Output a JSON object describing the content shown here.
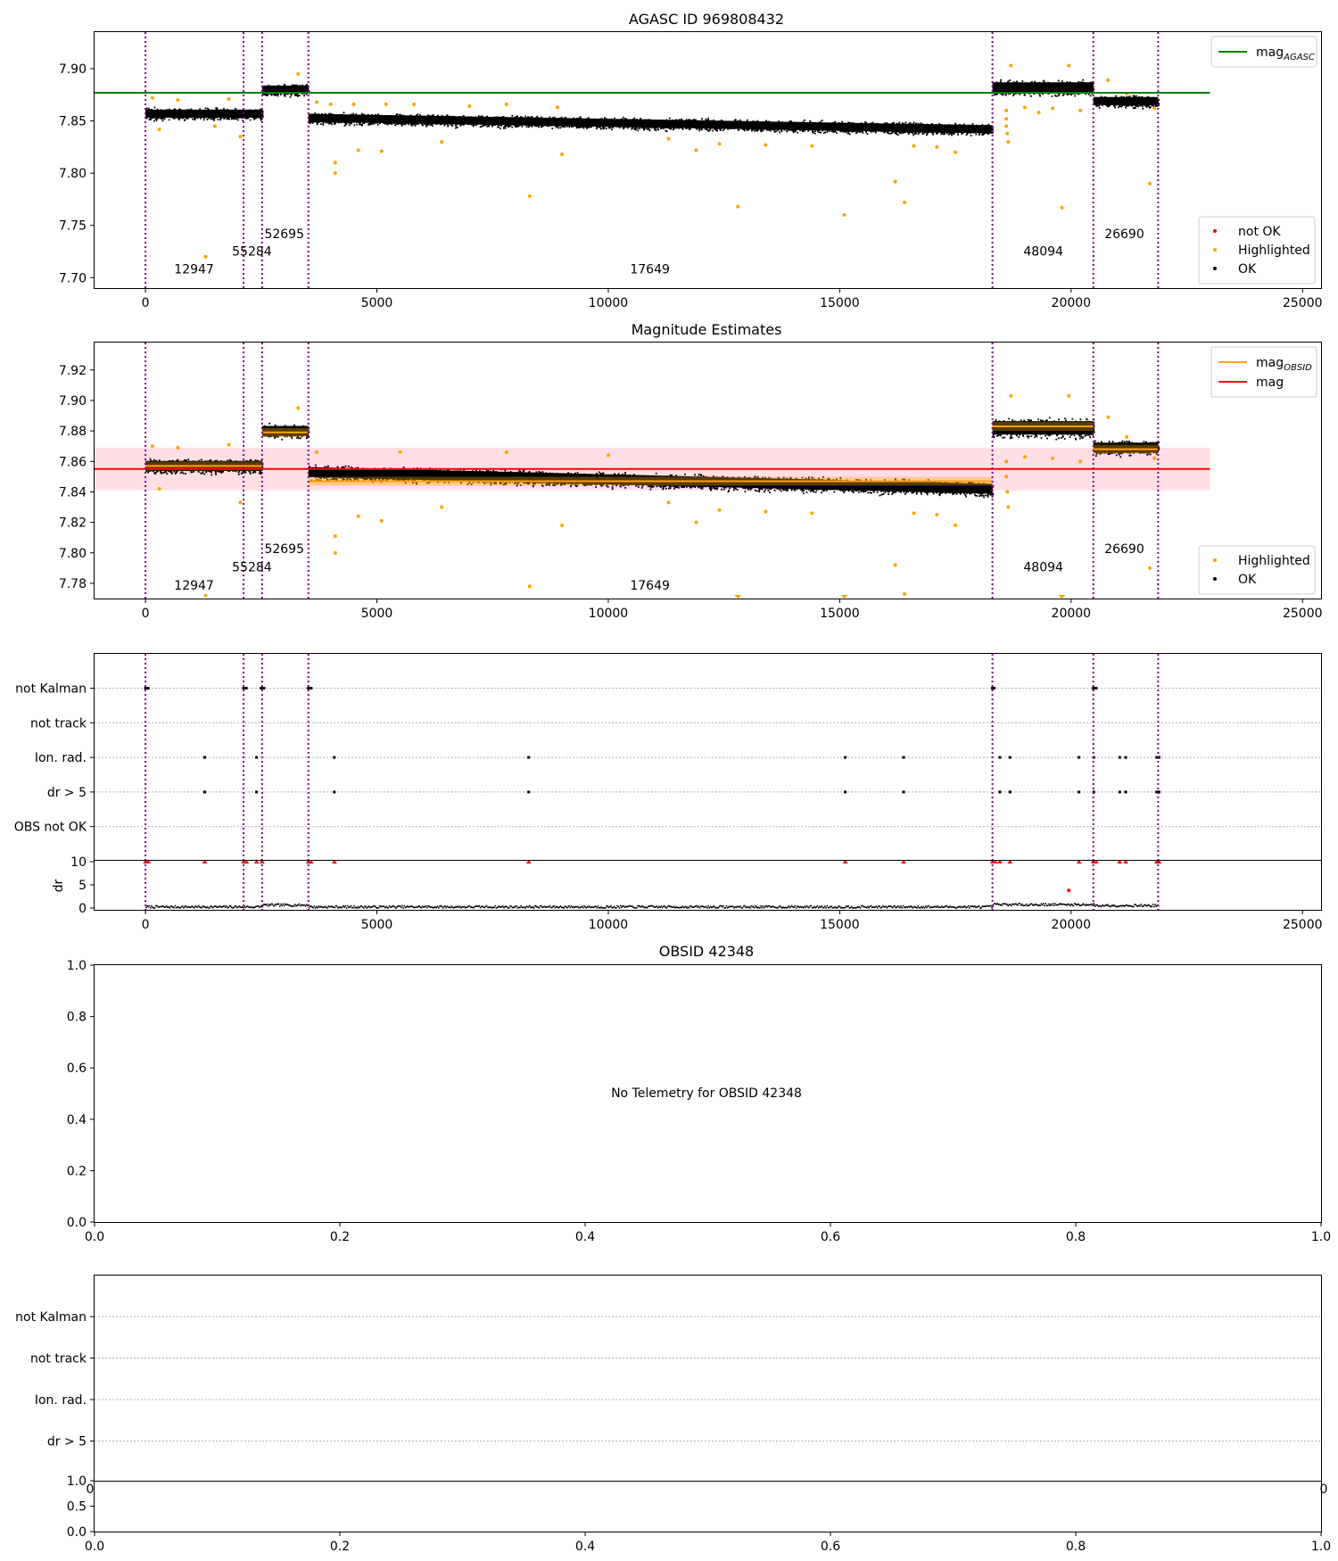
{
  "chart_data": [
    {
      "type": "scatter",
      "title": "AGASC ID 969808432",
      "xlim": [
        -1100,
        25400
      ],
      "ylim": [
        7.69,
        7.935
      ],
      "xticks": [
        0,
        5000,
        10000,
        15000,
        20000,
        25000
      ],
      "yticks": [
        7.7,
        7.75,
        7.8,
        7.85,
        7.9
      ],
      "ytick_decimals": 2,
      "vlines": [
        0,
        2120,
        2520,
        3520,
        18300,
        20480,
        21880
      ],
      "obs_labels": [
        {
          "text": "12947",
          "x": 1050,
          "y": 7.704
        },
        {
          "text": "55284",
          "x": 2300,
          "y": 7.721
        },
        {
          "text": "52695",
          "x": 3000,
          "y": 7.738
        },
        {
          "text": "17649",
          "x": 10900,
          "y": 7.704
        },
        {
          "text": "48094",
          "x": 19400,
          "y": 7.721
        },
        {
          "text": "26690",
          "x": 21150,
          "y": 7.738
        }
      ],
      "segments": [
        {
          "x0": 0,
          "x1": 2520,
          "y0": 7.857,
          "y1": 7.857,
          "spread": 0.007
        },
        {
          "x0": 2520,
          "x1": 3520,
          "y0": 7.88,
          "y1": 7.88,
          "spread": 0.007
        },
        {
          "x0": 3520,
          "x1": 18300,
          "y0": 7.853,
          "y1": 7.842,
          "spread": 0.007
        },
        {
          "x0": 18300,
          "x1": 20480,
          "y0": 7.882,
          "y1": 7.882,
          "spread": 0.009
        },
        {
          "x0": 20480,
          "x1": 21880,
          "y0": 7.869,
          "y1": 7.869,
          "spread": 0.007
        }
      ],
      "highlighted": [
        [
          150,
          7.872
        ],
        [
          300,
          7.842
        ],
        [
          700,
          7.87
        ],
        [
          1300,
          7.72
        ],
        [
          1500,
          7.845
        ],
        [
          1800,
          7.871
        ],
        [
          2050,
          7.835
        ],
        [
          3300,
          7.895
        ],
        [
          3700,
          7.868
        ],
        [
          4000,
          7.866
        ],
        [
          4100,
          7.8
        ],
        [
          4100,
          7.81
        ],
        [
          4500,
          7.866
        ],
        [
          4600,
          7.822
        ],
        [
          5100,
          7.821
        ],
        [
          5200,
          7.866
        ],
        [
          5800,
          7.866
        ],
        [
          6400,
          7.83
        ],
        [
          7000,
          7.864
        ],
        [
          7800,
          7.866
        ],
        [
          8300,
          7.778
        ],
        [
          8900,
          7.863
        ],
        [
          9000,
          7.818
        ],
        [
          11300,
          7.833
        ],
        [
          11900,
          7.822
        ],
        [
          12400,
          7.828
        ],
        [
          12800,
          7.768
        ],
        [
          13400,
          7.827
        ],
        [
          14400,
          7.826
        ],
        [
          15100,
          7.76
        ],
        [
          16200,
          7.792
        ],
        [
          16400,
          7.772
        ],
        [
          16600,
          7.826
        ],
        [
          17100,
          7.825
        ],
        [
          17500,
          7.82
        ],
        [
          18600,
          7.86
        ],
        [
          18600,
          7.852
        ],
        [
          18600,
          7.845
        ],
        [
          18620,
          7.838
        ],
        [
          18640,
          7.83
        ],
        [
          18700,
          7.903
        ],
        [
          19000,
          7.863
        ],
        [
          19300,
          7.858
        ],
        [
          19600,
          7.862
        ],
        [
          19800,
          7.767
        ],
        [
          19950,
          7.903
        ],
        [
          20200,
          7.86
        ],
        [
          20800,
          7.889
        ],
        [
          21200,
          7.876
        ],
        [
          21700,
          7.79
        ],
        [
          21800,
          7.862
        ]
      ],
      "hlines": [
        {
          "y": 7.877,
          "x0": -1100,
          "x1": 23000,
          "color": "#008000",
          "name": "mag_AGASC"
        }
      ],
      "band": null,
      "legend_top": [
        {
          "label": "mag",
          "sub": "AGASC",
          "color": "#008000"
        }
      ],
      "legend_bottom": [
        {
          "label": "not OK",
          "color": "#ff0000"
        },
        {
          "label": "Highlighted",
          "color": "#ffa500"
        },
        {
          "label": "OK",
          "color": "#000000"
        }
      ]
    },
    {
      "type": "scatter",
      "title": "Magnitude Estimates",
      "xlim": [
        -1100,
        25400
      ],
      "ylim": [
        7.77,
        7.938
      ],
      "xticks": [
        0,
        5000,
        10000,
        15000,
        20000,
        25000
      ],
      "yticks": [
        7.78,
        7.8,
        7.82,
        7.84,
        7.86,
        7.88,
        7.9,
        7.92
      ],
      "ytick_decimals": 2,
      "vlines": [
        0,
        2120,
        2520,
        3520,
        18300,
        20480,
        21880
      ],
      "obs_labels": [
        {
          "text": "12947",
          "x": 1050,
          "y": 7.776
        },
        {
          "text": "55284",
          "x": 2300,
          "y": 7.788
        },
        {
          "text": "52695",
          "x": 3000,
          "y": 7.8
        },
        {
          "text": "17649",
          "x": 10900,
          "y": 7.776
        },
        {
          "text": "48094",
          "x": 19400,
          "y": 7.788
        },
        {
          "text": "26690",
          "x": 21150,
          "y": 7.8
        }
      ],
      "segments": [
        {
          "x0": 0,
          "x1": 2520,
          "y0": 7.857,
          "y1": 7.857,
          "spread": 0.006,
          "mean": 7.857
        },
        {
          "x0": 2520,
          "x1": 3520,
          "y0": 7.88,
          "y1": 7.88,
          "spread": 0.006,
          "mean": 7.879
        },
        {
          "x0": 3520,
          "x1": 18300,
          "y0": 7.853,
          "y1": 7.842,
          "spread": 0.006,
          "mean": 7.847
        },
        {
          "x0": 18300,
          "x1": 20480,
          "y0": 7.882,
          "y1": 7.882,
          "spread": 0.008,
          "mean": 7.883
        },
        {
          "x0": 20480,
          "x1": 21880,
          "y0": 7.869,
          "y1": 7.869,
          "spread": 0.006,
          "mean": 7.868
        }
      ],
      "highlighted": [
        [
          150,
          7.87
        ],
        [
          300,
          7.842
        ],
        [
          700,
          7.869
        ],
        [
          1300,
          7.772
        ],
        [
          1800,
          7.871
        ],
        [
          2050,
          7.833
        ],
        [
          3300,
          7.895
        ],
        [
          3700,
          7.866
        ],
        [
          4100,
          7.8
        ],
        [
          4100,
          7.811
        ],
        [
          4600,
          7.824
        ],
        [
          5100,
          7.821
        ],
        [
          5500,
          7.866
        ],
        [
          6400,
          7.83
        ],
        [
          7800,
          7.866
        ],
        [
          8300,
          7.778
        ],
        [
          9000,
          7.818
        ],
        [
          10000,
          7.864
        ],
        [
          11300,
          7.833
        ],
        [
          11900,
          7.82
        ],
        [
          12400,
          7.828
        ],
        [
          12800,
          7.771
        ],
        [
          13400,
          7.827
        ],
        [
          14400,
          7.826
        ],
        [
          15100,
          7.771
        ],
        [
          16200,
          7.792
        ],
        [
          16400,
          7.773
        ],
        [
          16600,
          7.826
        ],
        [
          17100,
          7.825
        ],
        [
          17500,
          7.818
        ],
        [
          18600,
          7.86
        ],
        [
          18600,
          7.85
        ],
        [
          18620,
          7.84
        ],
        [
          18640,
          7.83
        ],
        [
          18700,
          7.903
        ],
        [
          19000,
          7.863
        ],
        [
          19600,
          7.862
        ],
        [
          19800,
          7.771
        ],
        [
          19950,
          7.903
        ],
        [
          20200,
          7.86
        ],
        [
          20800,
          7.889
        ],
        [
          21200,
          7.876
        ],
        [
          21700,
          7.79
        ],
        [
          21800,
          7.862
        ]
      ],
      "hlines": [
        {
          "y": 7.855,
          "x0": -1100,
          "x1": 23000,
          "color": "#ff0000",
          "name": "mag"
        }
      ],
      "band": {
        "y0": 7.841,
        "y1": 7.869,
        "x0": -1100,
        "x1": 23000,
        "color": "#ffc0cb"
      },
      "legend_top": [
        {
          "label": "mag",
          "sub": "OBSID",
          "color": "#ffa500"
        },
        {
          "label": "mag",
          "sub": "",
          "color": "#ff0000"
        }
      ],
      "legend_bottom": [
        {
          "label": "Highlighted",
          "color": "#ffa500"
        },
        {
          "label": "OK",
          "color": "#000000"
        }
      ]
    },
    {
      "type": "scatter",
      "title": "",
      "xlim": [
        -1100,
        25400
      ],
      "categories": [
        "not Kalman",
        "not track",
        "Ion. rad.",
        "dr > 5",
        "OBS not OK"
      ],
      "vlines": [
        0,
        2120,
        2520,
        3520,
        18300,
        20480,
        21880
      ],
      "flag_points": {
        "not Kalman": [
          0,
          60,
          2120,
          2180,
          2500,
          2560,
          3520,
          3580,
          18300,
          18340,
          20480,
          20540
        ],
        "Ion. rad.": [
          1280,
          2400,
          4080,
          8280,
          15120,
          16380,
          18460,
          18680,
          20170,
          20490,
          21050,
          21180,
          21850,
          21900
        ],
        "dr > 5": [
          1280,
          2400,
          4080,
          8280,
          15120,
          16380,
          18460,
          18680,
          20170,
          20490,
          21050,
          21180,
          21850,
          21900
        ]
      },
      "dr_ylabel": "dr",
      "dr_yticks": [
        0,
        5,
        10
      ],
      "dr_xticks": [
        0,
        5000,
        10000,
        15000,
        20000,
        25000
      ],
      "dr_clipped": [
        0,
        60,
        1280,
        2120,
        2180,
        2400,
        2520,
        3520,
        3580,
        4080,
        8280,
        15120,
        16380,
        18300,
        18360,
        18460,
        18680,
        20170,
        20480,
        20540,
        21050,
        21180,
        21850,
        21900
      ],
      "dr_outlier": [
        19950,
        3.8
      ],
      "dr_segments": [
        {
          "x0": 0,
          "x1": 2520,
          "y": 0.2
        },
        {
          "x0": 2520,
          "x1": 3520,
          "y": 0.6
        },
        {
          "x0": 3520,
          "x1": 18300,
          "y": 0.2
        },
        {
          "x0": 18300,
          "x1": 20480,
          "y": 0.7
        },
        {
          "x0": 20480,
          "x1": 21880,
          "y": 0.5
        }
      ]
    },
    {
      "type": "scatter",
      "title": "OBSID 42348",
      "message": "No Telemetry for OBSID 42348",
      "xlim": [
        0,
        1
      ],
      "ylim": [
        0,
        1
      ],
      "xticks": [
        0.0,
        0.2,
        0.4,
        0.6,
        0.8,
        1.0
      ],
      "yticks": [
        0.0,
        0.2,
        0.4,
        0.6,
        0.8,
        1.0
      ]
    },
    {
      "type": "scatter",
      "title": "",
      "categories": [
        "not Kalman",
        "not track",
        "Ion. rad.",
        "dr > 5"
      ],
      "overlap_xticks": [
        "0",
        "0"
      ],
      "sub_yticks": [
        0.0,
        0.5,
        1.0
      ],
      "xticks": [
        0.0,
        0.2,
        0.4,
        0.6,
        0.8,
        1.0
      ]
    }
  ]
}
